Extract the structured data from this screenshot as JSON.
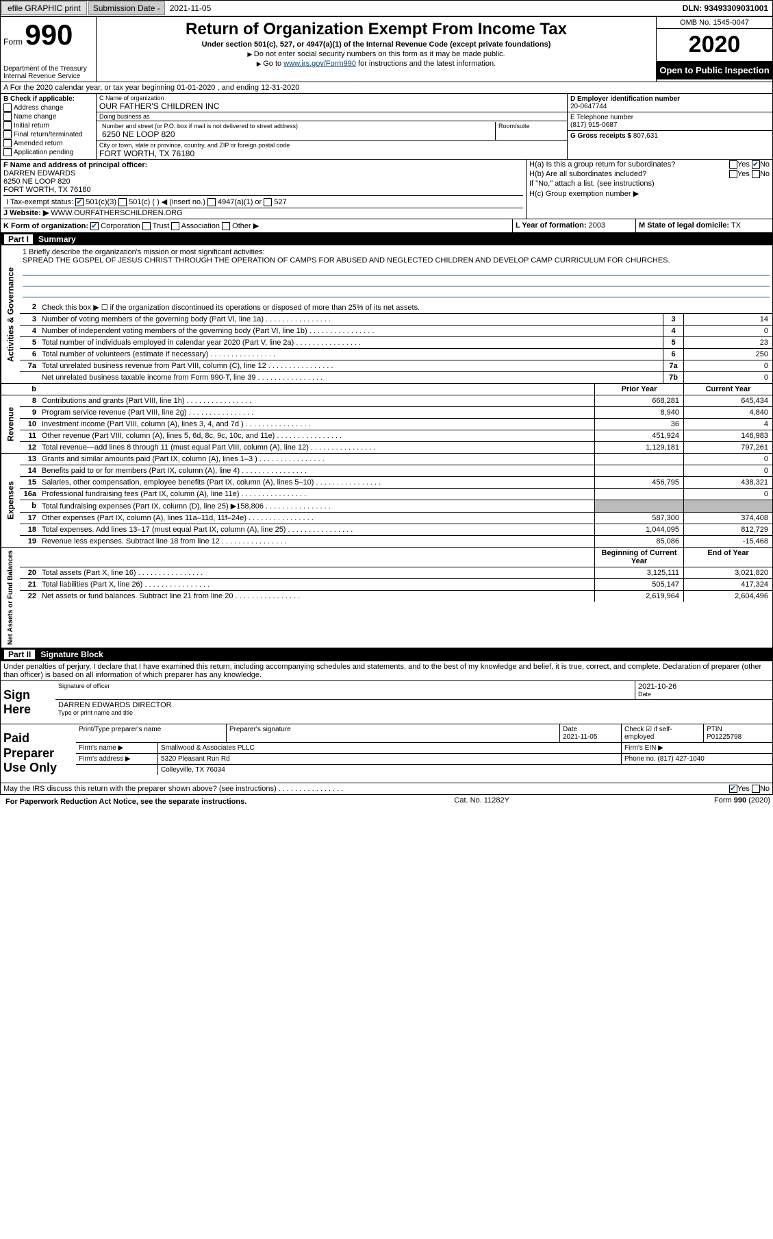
{
  "topbar": {
    "efile": "efile GRAPHIC print",
    "sub_lbl": "Submission Date -",
    "sub_date": "2021-11-05",
    "dln": "DLN: 93493309031001"
  },
  "header": {
    "form_word": "Form",
    "form_num": "990",
    "dept": "Department of the Treasury\nInternal Revenue Service",
    "title": "Return of Organization Exempt From Income Tax",
    "sub1": "Under section 501(c), 527, or 4947(a)(1) of the Internal Revenue Code (except private foundations)",
    "sub2": "Do not enter social security numbers on this form as it may be made public.",
    "sub3_pre": "Go to ",
    "sub3_link": "www.irs.gov/Form990",
    "sub3_post": " for instructions and the latest information.",
    "omb": "OMB No. 1545-0047",
    "year": "2020",
    "pub": "Open to Public Inspection"
  },
  "line_a": "A For the 2020 calendar year, or tax year beginning 01-01-2020 , and ending 12-31-2020",
  "b": {
    "hdr": "B Check if applicable:",
    "opts": [
      "Address change",
      "Name change",
      "Initial return",
      "Final return/terminated",
      "Amended return",
      "Application pending"
    ],
    "c_lbl": "C Name of organization",
    "c_val": "OUR FATHER'S CHILDREN INC",
    "dba_lbl": "Doing business as",
    "dba_val": "",
    "street_lbl": "Number and street (or P.O. box if mail is not delivered to street address)",
    "room_lbl": "Room/suite",
    "street_val": "6250 NE LOOP 820",
    "city_lbl": "City or town, state or province, country, and ZIP or foreign postal code",
    "city_val": "FORT WORTH, TX  76180",
    "d_lbl": "D Employer identification number",
    "d_val": "20-0647744",
    "e_lbl": "E Telephone number",
    "e_val": "(817) 915-0687",
    "g_lbl": "G Gross receipts $",
    "g_val": "807,631"
  },
  "f": {
    "lbl": "F Name and address of principal officer:",
    "name": "DARREN EDWARDS",
    "street": "6250 NE LOOP 820",
    "city": "FORT WORTH, TX  76180"
  },
  "h": {
    "a": "H(a)  Is this a group return for subordinates?",
    "a_yes": "Yes",
    "a_no": "No",
    "b": "H(b)  Are all subordinates included?",
    "b_yes": "Yes",
    "b_no": "No",
    "b_note": "If \"No,\" attach a list. (see instructions)",
    "c": "H(c)  Group exemption number ▶"
  },
  "i": {
    "lbl": "I Tax-exempt status:",
    "o1": "501(c)(3)",
    "o2": "501(c) ( ) ◀ (insert no.)",
    "o3": "4947(a)(1) or",
    "o4": "527"
  },
  "j": {
    "lbl": "J Website: ▶",
    "val": "WWW.OURFATHERSCHILDREN.ORG"
  },
  "k": {
    "lbl": "K Form of organization:",
    "o1": "Corporation",
    "o2": "Trust",
    "o3": "Association",
    "o4": "Other ▶"
  },
  "l": {
    "lbl": "L Year of formation:",
    "val": "2003"
  },
  "m": {
    "lbl": "M State of legal domicile:",
    "val": "TX"
  },
  "part1": {
    "num": "Part I",
    "title": "Summary"
  },
  "mission": {
    "q": "1  Briefly describe the organization's mission or most significant activities:",
    "text": "SPREAD THE GOSPEL OF JESUS CHRIST THROUGH THE OPERATION OF CAMPS FOR ABUSED AND NEGLECTED CHILDREN AND DEVELOP CAMP CURRICULUM FOR CHURCHES."
  },
  "gov": {
    "l2": "Check this box ▶ ☐ if the organization discontinued its operations or disposed of more than 25% of its net assets.",
    "rows": [
      {
        "n": "3",
        "d": "Number of voting members of the governing body (Part VI, line 1a)",
        "b": "3",
        "v": "14"
      },
      {
        "n": "4",
        "d": "Number of independent voting members of the governing body (Part VI, line 1b)",
        "b": "4",
        "v": "0"
      },
      {
        "n": "5",
        "d": "Total number of individuals employed in calendar year 2020 (Part V, line 2a)",
        "b": "5",
        "v": "23"
      },
      {
        "n": "6",
        "d": "Total number of volunteers (estimate if necessary)",
        "b": "6",
        "v": "250"
      },
      {
        "n": "7a",
        "d": "Total unrelated business revenue from Part VIII, column (C), line 12",
        "b": "7a",
        "v": "0"
      },
      {
        "n": "",
        "d": "Net unrelated business taxable income from Form 990-T, line 39",
        "b": "7b",
        "v": "0"
      }
    ]
  },
  "revexp": {
    "hdr_prior": "Prior Year",
    "hdr_current": "Current Year",
    "rev": [
      {
        "n": "8",
        "d": "Contributions and grants (Part VIII, line 1h)",
        "p": "668,281",
        "c": "645,434"
      },
      {
        "n": "9",
        "d": "Program service revenue (Part VIII, line 2g)",
        "p": "8,940",
        "c": "4,840"
      },
      {
        "n": "10",
        "d": "Investment income (Part VIII, column (A), lines 3, 4, and 7d )",
        "p": "36",
        "c": "4"
      },
      {
        "n": "11",
        "d": "Other revenue (Part VIII, column (A), lines 5, 6d, 8c, 9c, 10c, and 11e)",
        "p": "451,924",
        "c": "146,983"
      },
      {
        "n": "12",
        "d": "Total revenue—add lines 8 through 11 (must equal Part VIII, column (A), line 12)",
        "p": "1,129,181",
        "c": "797,261"
      }
    ],
    "exp": [
      {
        "n": "13",
        "d": "Grants and similar amounts paid (Part IX, column (A), lines 1–3 )",
        "p": "",
        "c": "0"
      },
      {
        "n": "14",
        "d": "Benefits paid to or for members (Part IX, column (A), line 4)",
        "p": "",
        "c": "0"
      },
      {
        "n": "15",
        "d": "Salaries, other compensation, employee benefits (Part IX, column (A), lines 5–10)",
        "p": "456,795",
        "c": "438,321"
      },
      {
        "n": "16a",
        "d": "Professional fundraising fees (Part IX, column (A), line 11e)",
        "p": "",
        "c": "0"
      },
      {
        "n": "b",
        "d": "Total fundraising expenses (Part IX, column (D), line 25) ▶158,806",
        "p": "shaded",
        "c": "shaded"
      },
      {
        "n": "17",
        "d": "Other expenses (Part IX, column (A), lines 11a–11d, 11f–24e)",
        "p": "587,300",
        "c": "374,408"
      },
      {
        "n": "18",
        "d": "Total expenses. Add lines 13–17 (must equal Part IX, column (A), line 25)",
        "p": "1,044,095",
        "c": "812,729"
      },
      {
        "n": "19",
        "d": "Revenue less expenses. Subtract line 18 from line 12",
        "p": "85,086",
        "c": "-15,468"
      }
    ],
    "net_hdr_begin": "Beginning of Current Year",
    "net_hdr_end": "End of Year",
    "net": [
      {
        "n": "20",
        "d": "Total assets (Part X, line 16)",
        "p": "3,125,111",
        "c": "3,021,820"
      },
      {
        "n": "21",
        "d": "Total liabilities (Part X, line 26)",
        "p": "505,147",
        "c": "417,324"
      },
      {
        "n": "22",
        "d": "Net assets or fund balances. Subtract line 21 from line 20",
        "p": "2,619,964",
        "c": "2,604,496"
      }
    ]
  },
  "sidetabs": {
    "gov": "Activities & Governance",
    "rev": "Revenue",
    "exp": "Expenses",
    "net": "Net Assets or Fund Balances"
  },
  "part2": {
    "num": "Part II",
    "title": "Signature Block"
  },
  "sig": {
    "intro": "Under penalties of perjury, I declare that I have examined this return, including accompanying schedules and statements, and to the best of my knowledge and belief, it is true, correct, and complete. Declaration of preparer (other than officer) is based on all information of which preparer has any knowledge.",
    "sign_here": "Sign Here",
    "sig_officer_lbl": "Signature of officer",
    "sig_date": "2021-10-26",
    "date_lbl": "Date",
    "name_title": "DARREN EDWARDS  DIRECTOR",
    "name_lbl": "Type or print name and title"
  },
  "prep": {
    "label": "Paid Preparer Use Only",
    "p1": "Print/Type preparer's name",
    "p2": "Preparer's signature",
    "p3": "Date",
    "p3v": "2021-11-05",
    "p4": "Check ☑ if self-employed",
    "p5": "PTIN",
    "p5v": "P01225798",
    "firm_lbl": "Firm's name ▶",
    "firm": "Smallwood & Associates PLLC",
    "ein_lbl": "Firm's EIN ▶",
    "addr_lbl": "Firm's address ▶",
    "addr1": "5320 Pleasant Run Rd",
    "addr2": "Colleyville, TX  76034",
    "phone_lbl": "Phone no.",
    "phone": "(817) 427-1040"
  },
  "discuss": {
    "q": "May the IRS discuss this return with the preparer shown above? (see instructions)",
    "yes": "Yes",
    "no": "No"
  },
  "footer": {
    "pra": "For Paperwork Reduction Act Notice, see the separate instructions.",
    "cat": "Cat. No. 11282Y",
    "form": "Form 990 (2020)"
  }
}
